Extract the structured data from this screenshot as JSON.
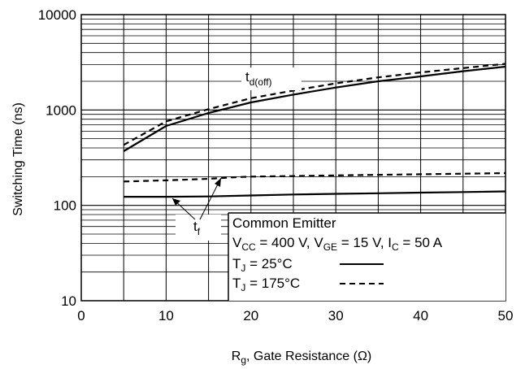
{
  "chart_data": {
    "type": "line",
    "title": "",
    "xlabel": {
      "main": "R",
      "sub": "g",
      "rest": ", Gate Resistance (Ω)"
    },
    "ylabel": "Switching Time (ns)",
    "xlim": [
      0,
      50
    ],
    "ylim": [
      10,
      10000
    ],
    "yscale": "log",
    "grid": true,
    "xticks": [
      0,
      10,
      20,
      30,
      40,
      50
    ],
    "yticks": [
      10,
      100,
      1000,
      10000
    ],
    "xtick_labels": [
      "0",
      "10",
      "20",
      "30",
      "40",
      "50"
    ],
    "ytick_labels": [
      "10",
      "100",
      "1000",
      "10000"
    ],
    "series": [
      {
        "label": "td(off), TJ = 25°C",
        "style": "solid",
        "x": [
          5,
          10,
          15,
          20,
          25,
          30,
          35,
          40,
          45,
          50
        ],
        "y": [
          370,
          680,
          930,
          1200,
          1450,
          1720,
          2000,
          2250,
          2550,
          2850
        ]
      },
      {
        "label": "td(off), TJ = 175°C",
        "style": "dashed",
        "x": [
          5,
          10,
          15,
          20,
          25,
          30,
          35,
          40,
          45,
          50
        ],
        "y": [
          430,
          760,
          1020,
          1330,
          1600,
          1900,
          2200,
          2480,
          2750,
          3050
        ]
      },
      {
        "label": "tf, TJ = 25°C",
        "style": "solid",
        "x": [
          5,
          10,
          15,
          20,
          25,
          30,
          35,
          40,
          45,
          50
        ],
        "y": [
          123,
          123,
          124,
          127,
          130,
          132,
          134,
          136,
          138,
          140
        ]
      },
      {
        "label": "tf, TJ = 175°C",
        "style": "dashed",
        "x": [
          5,
          10,
          15,
          18,
          20,
          25,
          30,
          35,
          40,
          45,
          50
        ],
        "y": [
          178,
          183,
          190,
          197,
          200,
          203,
          206,
          209,
          212,
          215,
          218
        ]
      }
    ],
    "annotations": {
      "td_off": {
        "main": "t",
        "sub": "d(off)"
      },
      "tf": {
        "main": "t",
        "sub": "f"
      }
    },
    "legend": {
      "placement": "bottom-right",
      "title": "Common Emitter",
      "conditions": [
        {
          "main": "V",
          "sub": "CC",
          "rest": " = 400 V, "
        },
        {
          "main": "V",
          "sub": "GE",
          "rest": " = 15 V, "
        },
        {
          "main": "I",
          "sub": "C",
          "rest": " = 50 A"
        }
      ],
      "entries": [
        {
          "main": "T",
          "sub": "J",
          "rest": " = 25°C",
          "style": "solid"
        },
        {
          "main": "T",
          "sub": "J",
          "rest": " = 175°C",
          "style": "dashed"
        }
      ]
    }
  }
}
